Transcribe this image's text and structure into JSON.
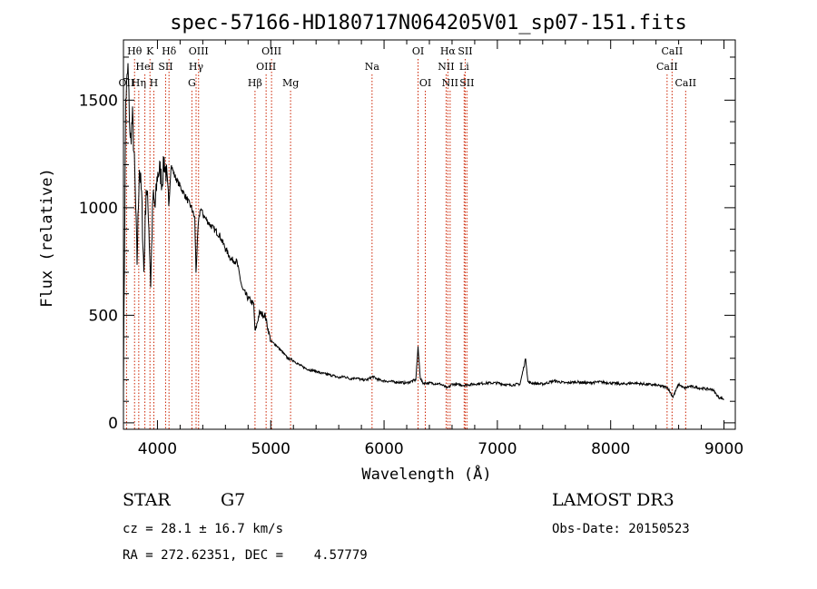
{
  "chart_data": {
    "type": "line",
    "title": "spec-57166-HD180717N064205V01_sp07-151.fits",
    "xlabel": "Wavelength (Å)",
    "ylabel": "Flux (relative)",
    "xlim": [
      3700,
      9100
    ],
    "ylim": [
      -30,
      1780
    ],
    "x_ticks": [
      4000,
      5000,
      6000,
      7000,
      8000,
      9000
    ],
    "y_ticks": [
      0,
      500,
      1000,
      1500
    ],
    "series": [
      {
        "name": "flux",
        "x": [
          3700,
          3720,
          3740,
          3760,
          3780,
          3800,
          3820,
          3840,
          3860,
          3880,
          3900,
          3920,
          3940,
          3960,
          3980,
          4000,
          4020,
          4040,
          4060,
          4080,
          4100,
          4120,
          4150,
          4200,
          4250,
          4300,
          4330,
          4340,
          4360,
          4380,
          4400,
          4450,
          4500,
          4550,
          4600,
          4650,
          4700,
          4750,
          4800,
          4850,
          4861,
          4900,
          4950,
          5000,
          5050,
          5100,
          5150,
          5200,
          5250,
          5300,
          5350,
          5400,
          5450,
          5500,
          5550,
          5600,
          5650,
          5700,
          5750,
          5800,
          5850,
          5900,
          5950,
          6000,
          6100,
          6200,
          6280,
          6300,
          6320,
          6340,
          6400,
          6500,
          6560,
          6600,
          6700,
          6800,
          6900,
          7000,
          7100,
          7200,
          7250,
          7270,
          7300,
          7400,
          7500,
          7600,
          7700,
          7800,
          7900,
          8000,
          8100,
          8200,
          8300,
          8400,
          8500,
          8550,
          8600,
          8650,
          8700,
          8800,
          8900,
          8950,
          9000
        ],
        "values": [
          200,
          1500,
          1650,
          1300,
          1420,
          1150,
          750,
          1200,
          1050,
          700,
          1100,
          980,
          650,
          1050,
          1000,
          1150,
          1180,
          1120,
          1220,
          1150,
          1000,
          1200,
          1150,
          1100,
          1050,
          1000,
          950,
          700,
          920,
          1000,
          970,
          930,
          900,
          870,
          810,
          760,
          750,
          620,
          580,
          550,
          420,
          510,
          500,
          380,
          360,
          330,
          300,
          290,
          270,
          255,
          245,
          240,
          230,
          225,
          220,
          210,
          215,
          205,
          210,
          200,
          200,
          215,
          200,
          195,
          190,
          185,
          200,
          350,
          210,
          185,
          185,
          180,
          160,
          180,
          175,
          180,
          185,
          185,
          175,
          180,
          300,
          190,
          185,
          180,
          195,
          185,
          190,
          185,
          190,
          185,
          180,
          185,
          180,
          175,
          165,
          120,
          180,
          160,
          170,
          160,
          155,
          120,
          110
        ]
      }
    ],
    "spectral_lines": [
      {
        "label": "OII",
        "wavelength": 3727,
        "row": 2
      },
      {
        "label": "Hθ",
        "wavelength": 3798,
        "row": 0
      },
      {
        "label": "Hη",
        "wavelength": 3835,
        "row": 2
      },
      {
        "label": "K",
        "wavelength": 3934,
        "row": 0
      },
      {
        "label": "HeI",
        "wavelength": 3889,
        "row": 1
      },
      {
        "label": "H",
        "wavelength": 3968,
        "row": 2
      },
      {
        "label": "SII",
        "wavelength": 4072,
        "row": 1
      },
      {
        "label": "Hδ",
        "wavelength": 4102,
        "row": 0
      },
      {
        "label": "G",
        "wavelength": 4304,
        "row": 2
      },
      {
        "label": "Hγ",
        "wavelength": 4341,
        "row": 1
      },
      {
        "label": "OIII",
        "wavelength": 4363,
        "row": 0
      },
      {
        "label": "Hβ",
        "wavelength": 4861,
        "row": 2
      },
      {
        "label": "OIII",
        "wavelength": 4959,
        "row": 1
      },
      {
        "label": "OIII",
        "wavelength": 5007,
        "row": 0
      },
      {
        "label": "Mg",
        "wavelength": 5175,
        "row": 2
      },
      {
        "label": "Na",
        "wavelength": 5894,
        "row": 1
      },
      {
        "label": "OI",
        "wavelength": 6300,
        "row": 0
      },
      {
        "label": "OI",
        "wavelength": 6364,
        "row": 2
      },
      {
        "label": "NII",
        "wavelength": 6548,
        "row": 1
      },
      {
        "label": "Hα",
        "wavelength": 6563,
        "row": 0
      },
      {
        "label": "NII",
        "wavelength": 6583,
        "row": 2
      },
      {
        "label": "Li",
        "wavelength": 6707,
        "row": 1
      },
      {
        "label": "SII",
        "wavelength": 6716,
        "row": 0
      },
      {
        "label": "SII",
        "wavelength": 6731,
        "row": 2
      },
      {
        "label": "CaII",
        "wavelength": 8498,
        "row": 1
      },
      {
        "label": "CaII",
        "wavelength": 8542,
        "row": 0
      },
      {
        "label": "CaII",
        "wavelength": 8662,
        "row": 2
      }
    ]
  },
  "info": {
    "class": "STAR",
    "subclass": "G7",
    "survey": "LAMOST DR3",
    "cz": "cz = 28.1 ± 16.7 km/s",
    "obs_date": "Obs-Date: 20150523",
    "coords": "RA = 272.62351, DEC =    4.57779"
  },
  "colors": {
    "line_marker": "#cc2200",
    "spectrum": "#000000",
    "axis": "#000000"
  }
}
